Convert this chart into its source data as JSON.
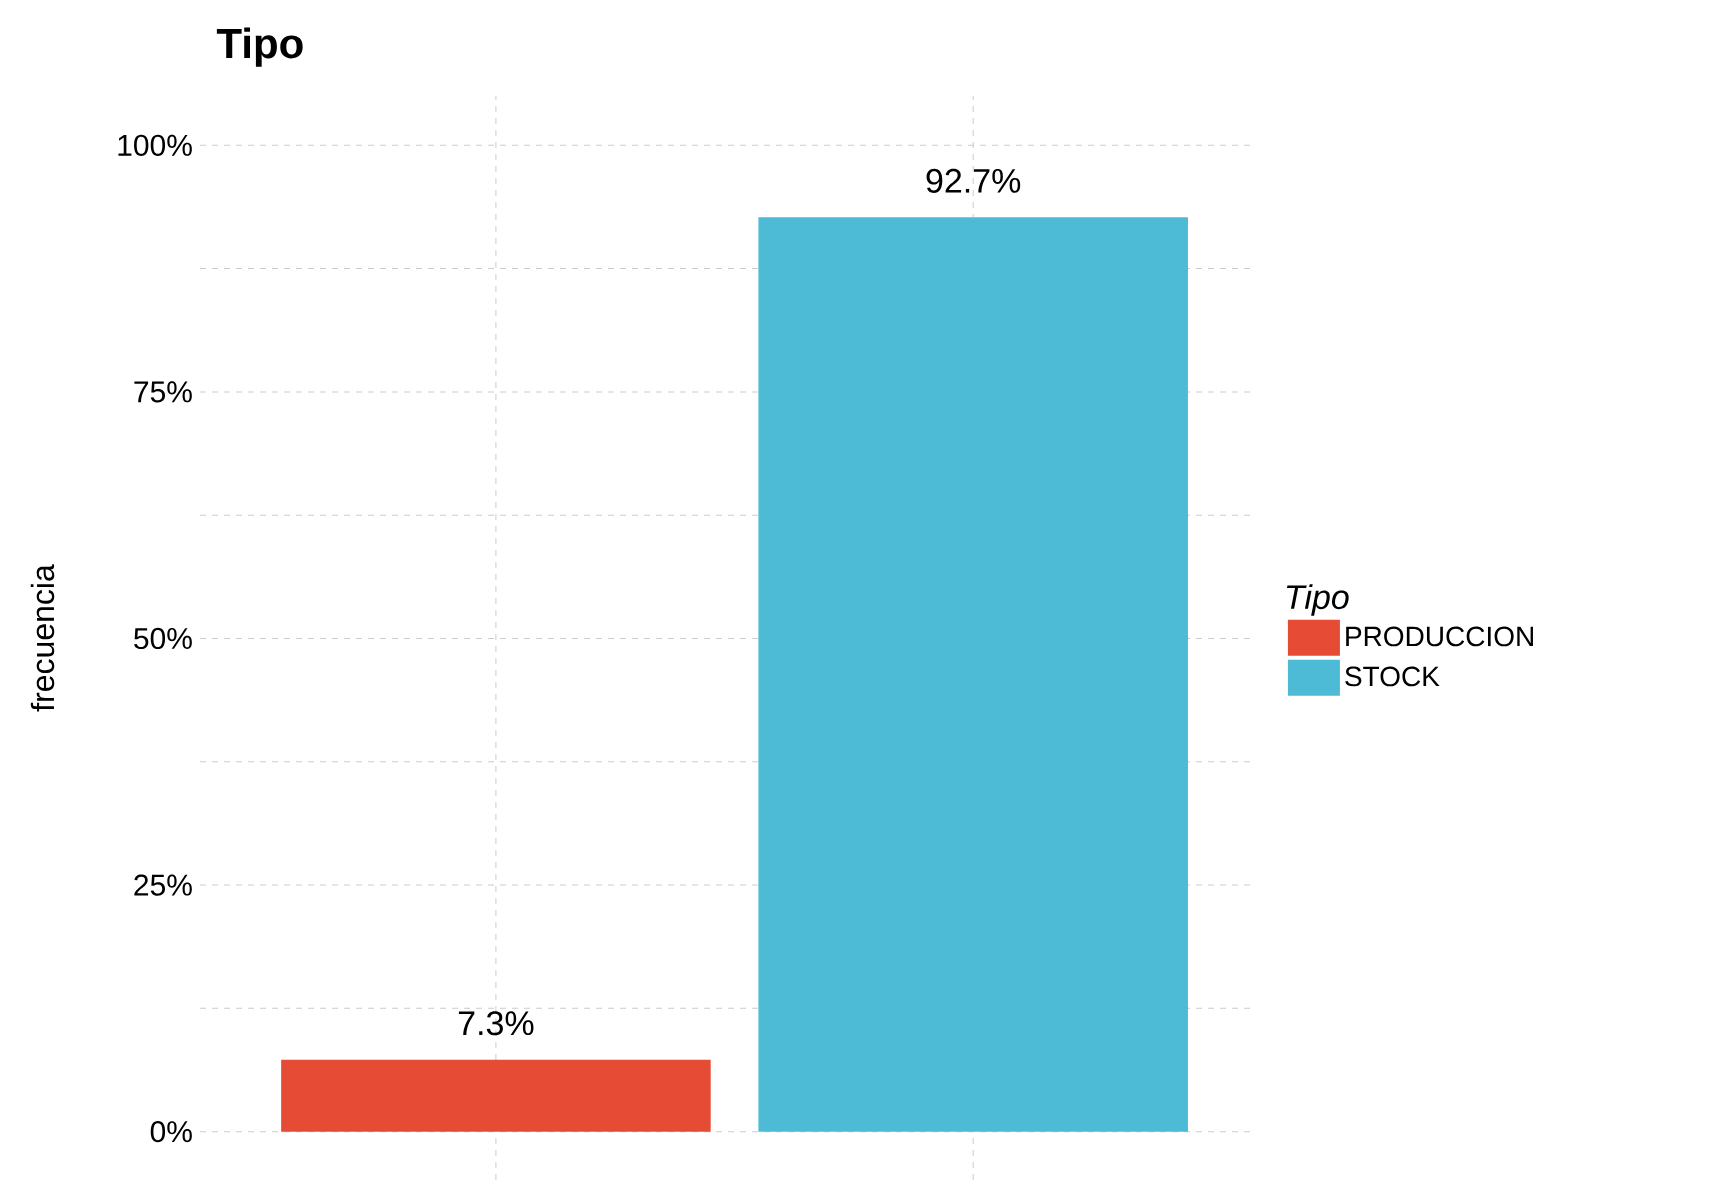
{
  "chart_data": {
    "type": "bar",
    "title": "Tipo",
    "ylabel": "frecuencia",
    "legend_title": "*Tipo*",
    "categories": [
      null,
      null
    ],
    "series": [
      {
        "name": "PRODUCCION",
        "color": "#e64b35",
        "values": [
          7.3,
          null
        ],
        "value_labels": [
          "7.3%",
          null
        ]
      },
      {
        "name": "STOCK",
        "color": "#4dbbd5",
        "values": [
          null,
          92.7
        ],
        "value_labels": [
          null,
          "92.7%"
        ]
      }
    ],
    "ylim": [
      -4.9,
      105
    ],
    "yticks": [
      {
        "value": 0,
        "label": "0%"
      },
      {
        "value": 12.5,
        "label": null
      },
      {
        "value": 25,
        "label": "25%"
      },
      {
        "value": 37.5,
        "label": null
      },
      {
        "value": 50,
        "label": "50%"
      },
      {
        "value": 62.5,
        "label": null
      },
      {
        "value": 75,
        "label": "75%"
      },
      {
        "value": 87.5,
        "label": null
      },
      {
        "value": 100,
        "label": "100%"
      }
    ],
    "grid": true,
    "legend": "right",
    "tick_labels": "y"
  }
}
